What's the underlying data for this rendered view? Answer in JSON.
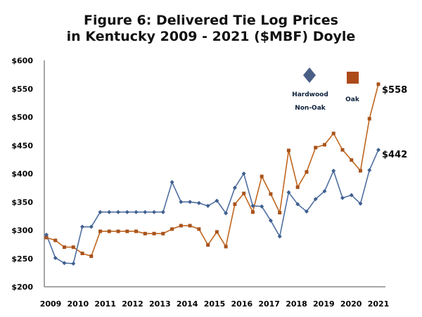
{
  "chart_data": {
    "type": "line",
    "title_line1": "Figure 6: Delivered Tie Log Prices",
    "title_line2": "in Kentucky 2009 - 2021 ($MBF) Doyle",
    "ylim": [
      200,
      600
    ],
    "yticks": [
      "$200",
      "$250",
      "$300",
      "$350",
      "$400",
      "$450",
      "$500",
      "$550",
      "$600"
    ],
    "xticks": [
      "2009",
      "2010",
      "2011",
      "2012",
      "2013",
      "2014",
      "2015",
      "2016",
      "2017",
      "2018",
      "2019",
      "2020",
      "2021"
    ],
    "grid": false,
    "legend_position": "top-right",
    "series": [
      {
        "name_line1": "Hardwood",
        "name_line2": "Non-Oak",
        "color": "#4f6fa0",
        "marker": "diamond",
        "values": [
          292,
          251,
          242,
          241,
          306,
          306,
          332,
          332,
          332,
          332,
          332,
          332,
          332,
          332,
          385,
          350,
          350,
          348,
          343,
          352,
          330,
          375,
          400,
          343,
          342,
          317,
          289,
          367,
          346,
          333,
          355,
          369,
          405,
          357,
          362,
          347,
          406,
          442
        ]
      },
      {
        "name": "Oak",
        "color": "#c0651d",
        "marker": "square",
        "values": [
          287,
          282,
          270,
          270,
          259,
          254,
          298,
          298,
          298,
          298,
          298,
          294,
          294,
          294,
          302,
          308,
          308,
          302,
          274,
          297,
          271,
          346,
          365,
          332,
          395,
          364,
          331,
          441,
          376,
          403,
          446,
          451,
          471,
          442,
          424,
          405,
          497,
          558
        ]
      }
    ],
    "end_labels": [
      "$558",
      "$442"
    ]
  }
}
